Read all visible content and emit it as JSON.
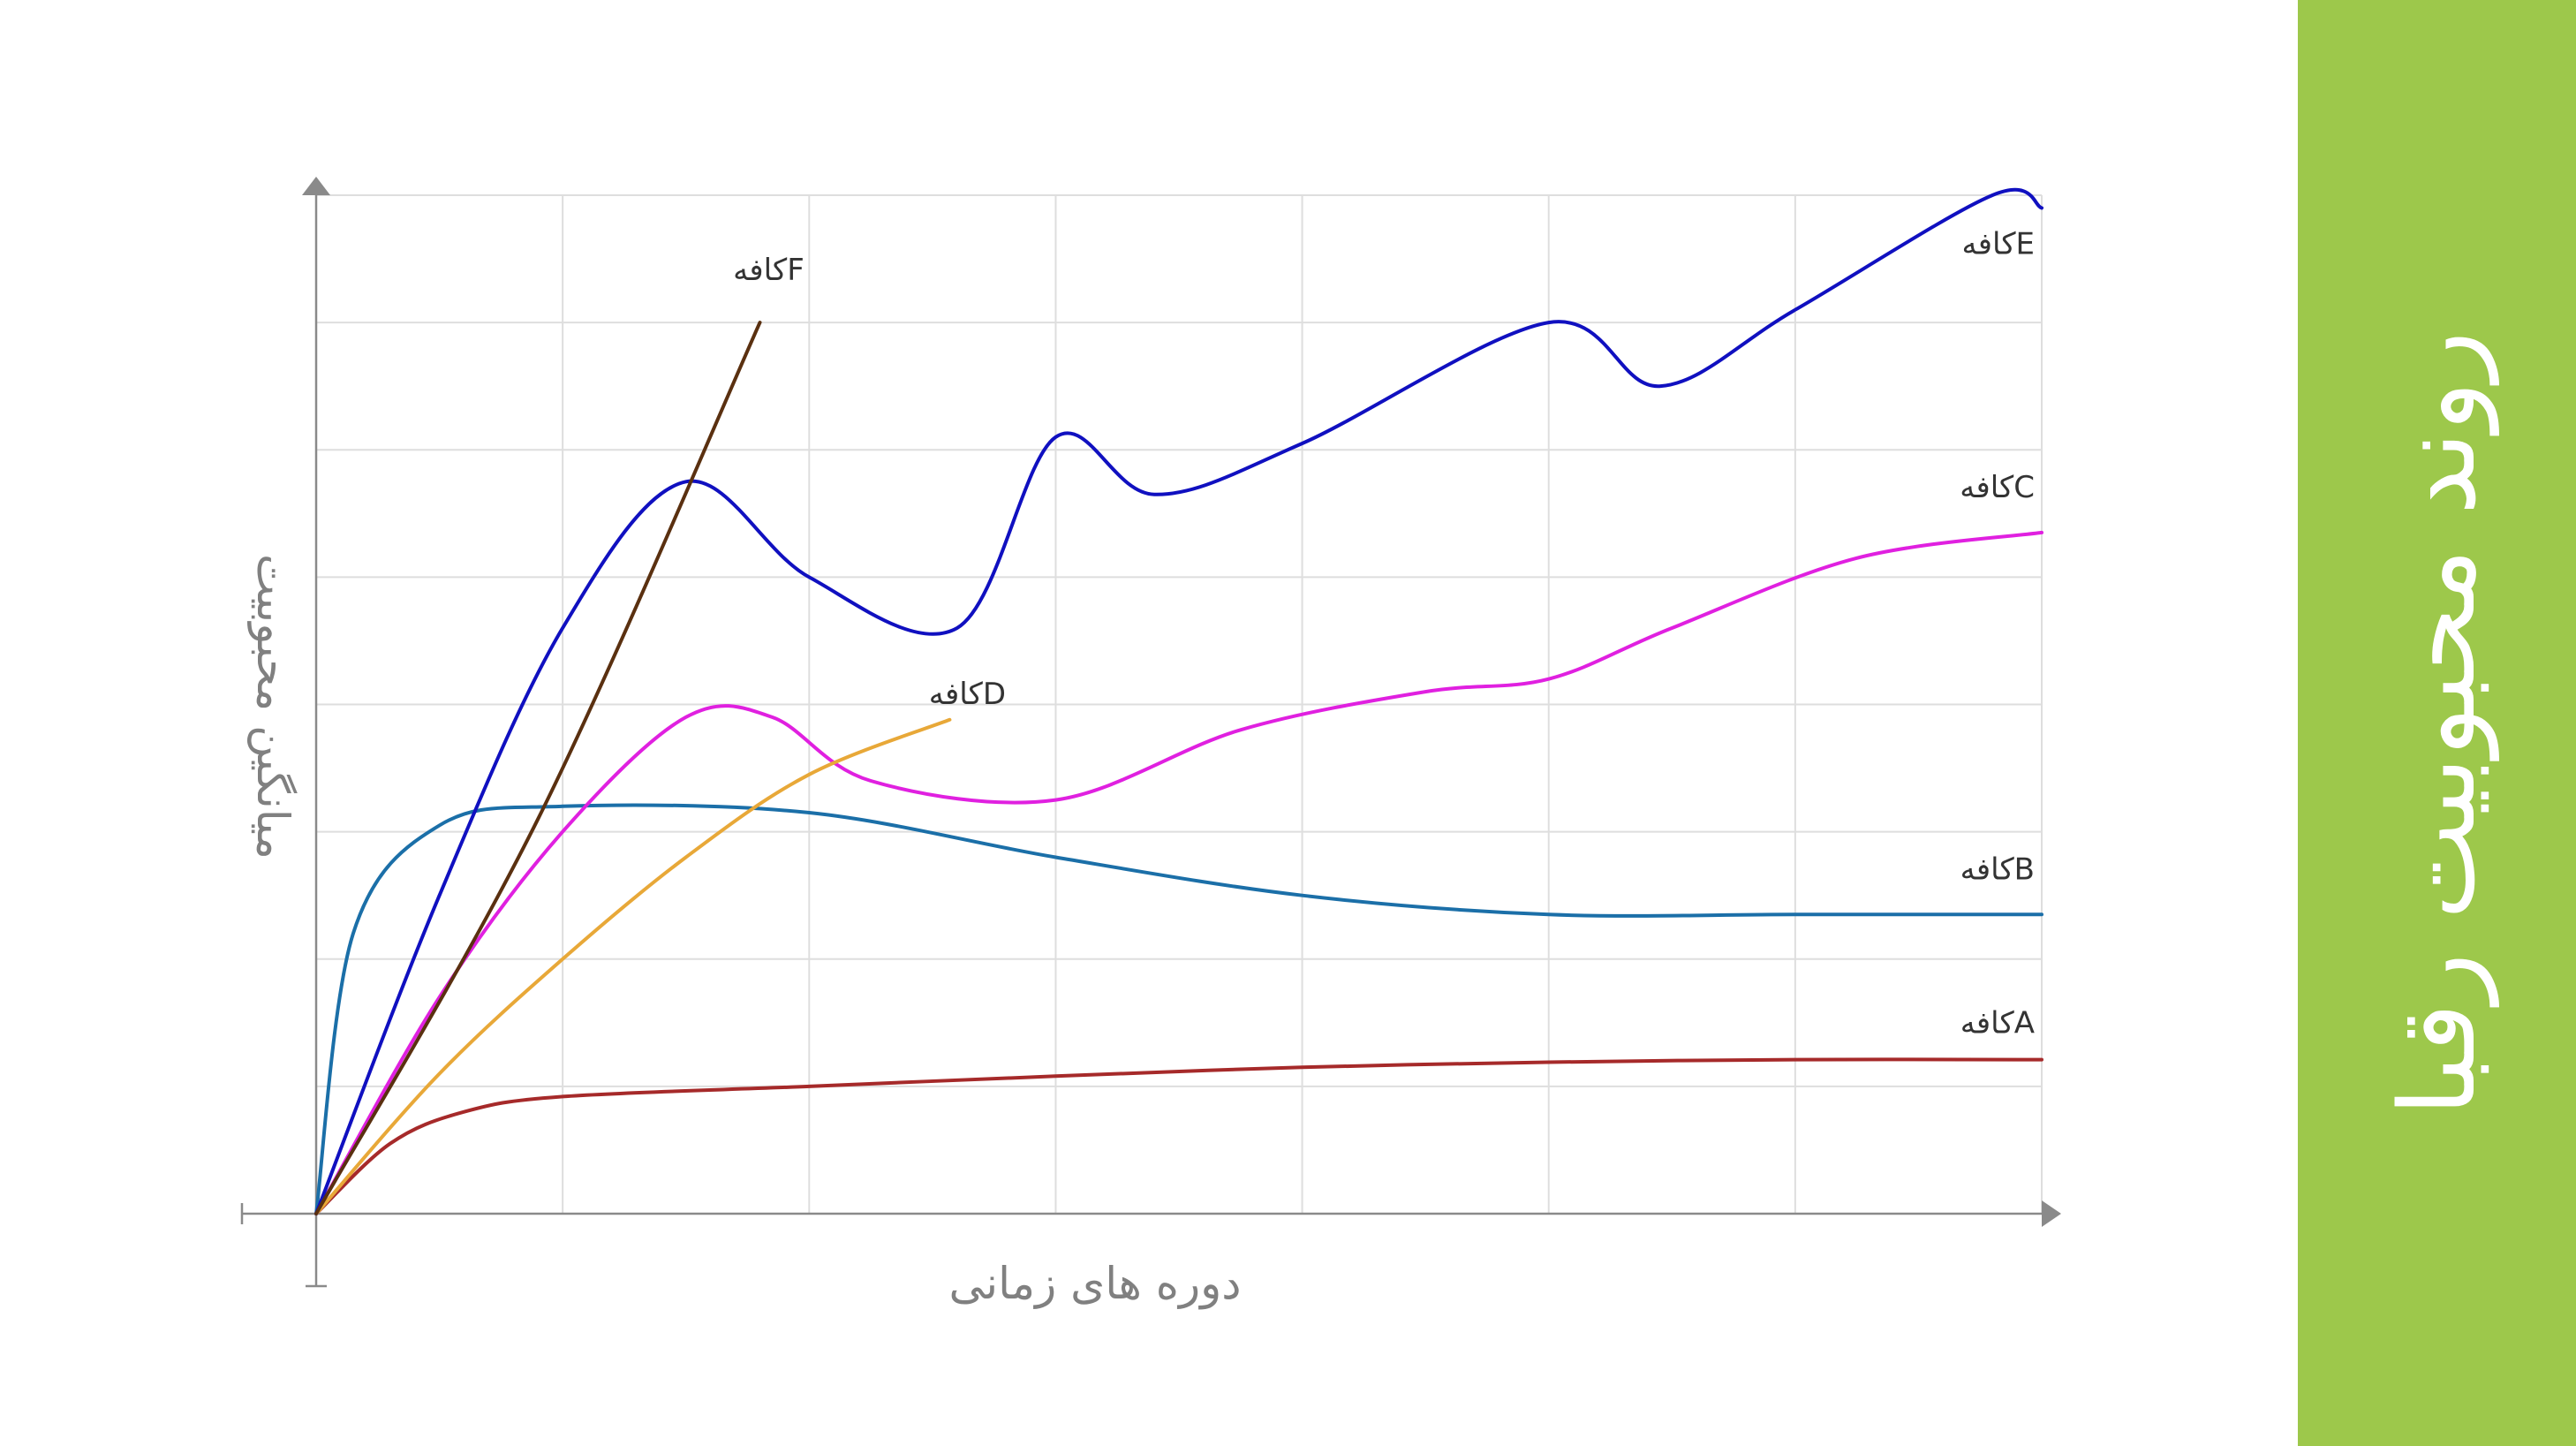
{
  "sidebar": {
    "title": "روند محبوبیت رقبا",
    "background_color": "#9dc84b"
  },
  "chart_data": {
    "type": "line",
    "title": "روند محبوبیت رقبا",
    "xlabel": "دوره های زمانی",
    "ylabel": "میانگین محبوبیت",
    "xlim": [
      0,
      7
    ],
    "ylim": [
      0,
      8
    ],
    "grid": true,
    "legend": "inline labels at line ends",
    "series": [
      {
        "name": "کافهA",
        "color": "#a62a2a",
        "points": [
          [
            0,
            0
          ],
          [
            0.3,
            0.55
          ],
          [
            0.6,
            0.8
          ],
          [
            1,
            0.92
          ],
          [
            2,
            1.0
          ],
          [
            3,
            1.08
          ],
          [
            4,
            1.15
          ],
          [
            5,
            1.19
          ],
          [
            6,
            1.21
          ],
          [
            7,
            1.21
          ]
        ]
      },
      {
        "name": "کافهB",
        "color": "#1b6fa8",
        "points": [
          [
            0,
            0
          ],
          [
            0.15,
            2.2
          ],
          [
            0.5,
            3.05
          ],
          [
            1,
            3.2
          ],
          [
            2,
            3.15
          ],
          [
            3,
            2.8
          ],
          [
            4,
            2.5
          ],
          [
            5,
            2.35
          ],
          [
            6,
            2.35
          ],
          [
            7,
            2.35
          ]
        ]
      },
      {
        "name": "کافهC",
        "color": "#e020e0",
        "points": [
          [
            0,
            0
          ],
          [
            0.5,
            1.7
          ],
          [
            1,
            3.0
          ],
          [
            1.5,
            3.9
          ],
          [
            1.85,
            3.9
          ],
          [
            2.25,
            3.4
          ],
          [
            3,
            3.25
          ],
          [
            3.75,
            3.8
          ],
          [
            4.5,
            4.1
          ],
          [
            5,
            4.2
          ],
          [
            5.5,
            4.6
          ],
          [
            6.25,
            5.15
          ],
          [
            7,
            5.35
          ]
        ]
      },
      {
        "name": "کافهD",
        "color": "#e8a838",
        "points": [
          [
            0,
            0
          ],
          [
            0.5,
            1.1
          ],
          [
            1,
            2.0
          ],
          [
            1.5,
            2.8
          ],
          [
            2,
            3.45
          ],
          [
            2.57,
            3.88
          ]
        ]
      },
      {
        "name": "کافهE",
        "color": "#1010c0",
        "points": [
          [
            0,
            0
          ],
          [
            0.5,
            2.5
          ],
          [
            1,
            4.6
          ],
          [
            1.5,
            5.75
          ],
          [
            2,
            5.0
          ],
          [
            2.6,
            4.6
          ],
          [
            3,
            6.1
          ],
          [
            3.4,
            5.65
          ],
          [
            4,
            6.05
          ],
          [
            5,
            7.0
          ],
          [
            5.45,
            6.5
          ],
          [
            6,
            7.1
          ],
          [
            6.8,
            8.0
          ],
          [
            7,
            7.9
          ]
        ]
      },
      {
        "name": "کافهF",
        "color": "#5a3010",
        "points": [
          [
            0,
            0
          ],
          [
            0.9,
            3.1
          ],
          [
            1.8,
            7.0
          ]
        ]
      }
    ]
  }
}
